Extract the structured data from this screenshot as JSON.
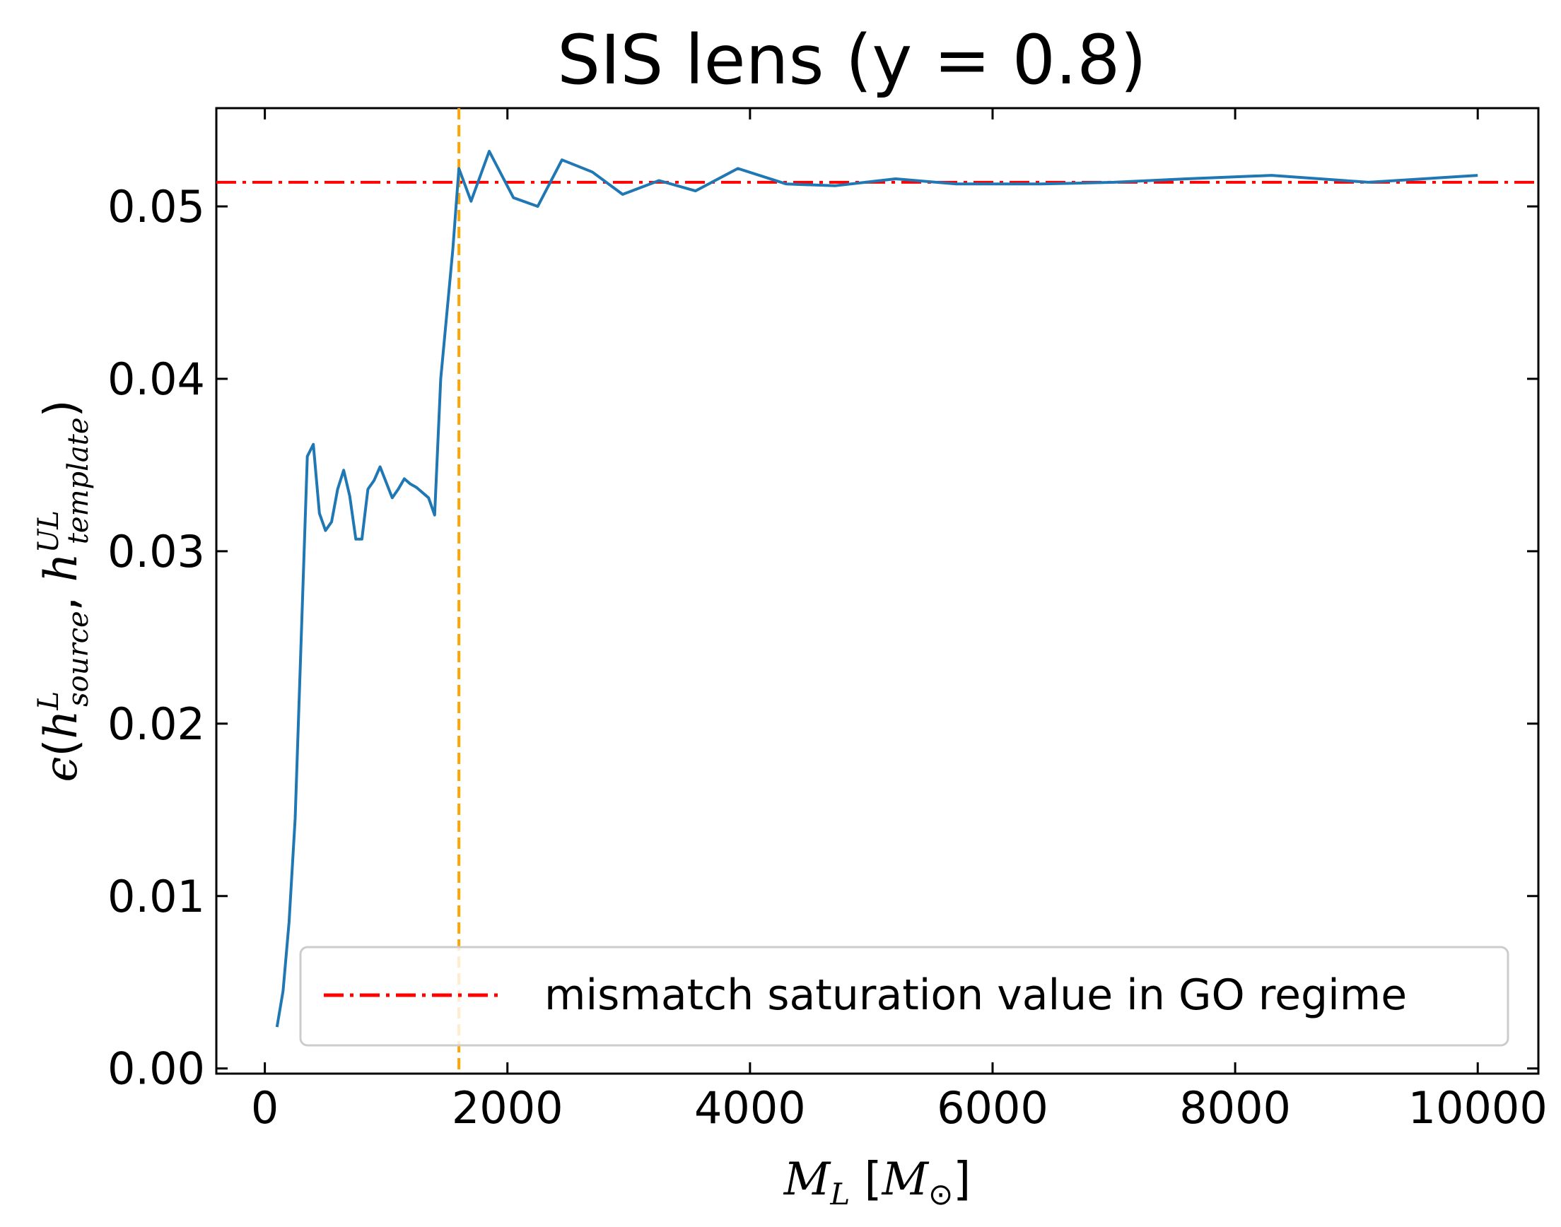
{
  "chart_data": {
    "type": "line",
    "title": "SIS lens (y = 0.8)",
    "xlabel": "M_L [M_⊙]",
    "ylabel": "ϵ(h^L_source, h^UL_template)",
    "xlim": [
      -400,
      10500
    ],
    "ylim": [
      -0.0003,
      0.0557
    ],
    "xticks": [
      0,
      2000,
      4000,
      6000,
      8000,
      10000
    ],
    "xtick_labels": [
      "0",
      "2000",
      "4000",
      "6000",
      "8000",
      "10000"
    ],
    "yticks": [
      0.0,
      0.01,
      0.02,
      0.03,
      0.04,
      0.05
    ],
    "ytick_labels": [
      "0.00",
      "0.01",
      "0.02",
      "0.03",
      "0.04",
      "0.05"
    ],
    "grid": false,
    "legend_position": "lower-right",
    "series": [
      {
        "name": "",
        "color": "#1f77b4",
        "x": [
          100,
          150,
          200,
          250,
          300,
          350,
          400,
          450,
          500,
          550,
          600,
          650,
          700,
          750,
          800,
          850,
          900,
          950,
          1050,
          1100,
          1150,
          1200,
          1250,
          1350,
          1400,
          1450,
          1550,
          1600,
          1700,
          1850,
          2050,
          2250,
          2450,
          2700,
          2950,
          3250,
          3550,
          3900,
          4300,
          4700,
          5200,
          5700,
          6400,
          7000,
          7600,
          8300,
          9100,
          10000
        ],
        "y": [
          0.0024,
          0.0045,
          0.0085,
          0.0145,
          0.025,
          0.0355,
          0.0362,
          0.0322,
          0.0312,
          0.0317,
          0.0336,
          0.0347,
          0.0332,
          0.0307,
          0.0307,
          0.0336,
          0.0341,
          0.0349,
          0.0331,
          0.0336,
          0.0342,
          0.0339,
          0.0337,
          0.0331,
          0.0321,
          0.04,
          0.0475,
          0.0522,
          0.0503,
          0.0532,
          0.0505,
          0.05,
          0.0527,
          0.052,
          0.0507,
          0.0515,
          0.0509,
          0.0522,
          0.0513,
          0.0512,
          0.0516,
          0.0513,
          0.0513,
          0.0514,
          0.0516,
          0.0518,
          0.0514,
          0.0518
        ]
      }
    ],
    "reference_lines": [
      {
        "orientation": "horizontal",
        "value": 0.0514,
        "style": "dash-dot",
        "color": "#ff0000",
        "label": "mismatch saturation value in GO regime"
      },
      {
        "orientation": "vertical",
        "value": 1600,
        "style": "dashed",
        "color": "#ffa500",
        "label": ""
      }
    ]
  }
}
